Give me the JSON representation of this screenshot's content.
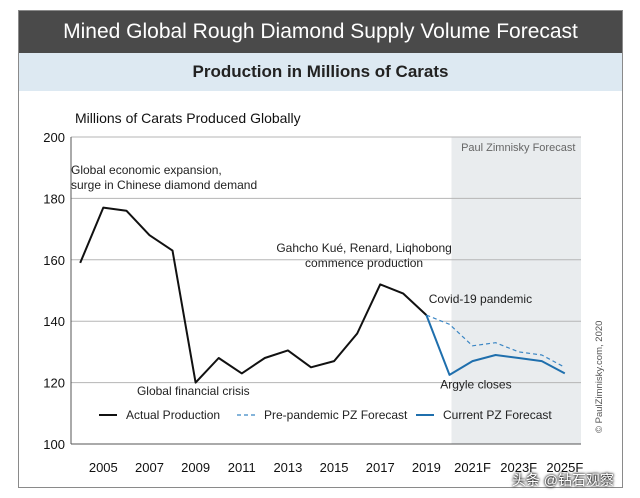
{
  "header": {
    "title": "Mined Global Rough Diamond Supply Volume Forecast",
    "subtitle": "Production in Millions of Carats"
  },
  "copyright": "© PaulZimnisky.com, 2020",
  "watermark": "头条 @钻石观察",
  "colors": {
    "actual": "#111111",
    "pre_pandemic": "#3b86c4",
    "current": "#1f6fad",
    "forecast_shade": "#e9ecee",
    "title_bg": "#4a4a4a",
    "subtitle_bg": "#dde9f2"
  },
  "chart_data": {
    "type": "line",
    "title": "Millions of Carats Produced Globally",
    "xlabel": "",
    "ylabel": "",
    "ylim": [
      100,
      200
    ],
    "yticks": [
      100,
      120,
      140,
      160,
      180,
      200
    ],
    "x": [
      2004,
      2005,
      2006,
      2007,
      2008,
      2009,
      2010,
      2011,
      2012,
      2013,
      2014,
      2015,
      2016,
      2017,
      2018,
      2019,
      2020,
      2021,
      2022,
      2023,
      2024,
      2025
    ],
    "xticks": [
      {
        "x": 2005,
        "label": "2005"
      },
      {
        "x": 2007,
        "label": "2007"
      },
      {
        "x": 2009,
        "label": "2009"
      },
      {
        "x": 2011,
        "label": "2011"
      },
      {
        "x": 2013,
        "label": "2013"
      },
      {
        "x": 2015,
        "label": "2015"
      },
      {
        "x": 2017,
        "label": "2017"
      },
      {
        "x": 2019,
        "label": "2019"
      },
      {
        "x": 2021,
        "label": "2021F"
      },
      {
        "x": 2023,
        "label": "2023F"
      },
      {
        "x": 2025,
        "label": "2025F"
      }
    ],
    "forecast_region": {
      "start": 2020,
      "label": "Paul Zimnisky Forecast"
    },
    "grid": true,
    "legend_position": "bottom",
    "series": [
      {
        "name": "Actual Production",
        "style": "solid",
        "color": "#111111",
        "x": [
          2004,
          2005,
          2006,
          2007,
          2008,
          2009,
          2010,
          2011,
          2012,
          2013,
          2014,
          2015,
          2016,
          2017,
          2018,
          2019
        ],
        "values": [
          159,
          177,
          176,
          168,
          163,
          120,
          128,
          123,
          128,
          130.5,
          125,
          127,
          136,
          152,
          149,
          142
        ]
      },
      {
        "name": "Pre-pandemic PZ Forecast",
        "style": "dashed",
        "color": "#3b86c4",
        "x": [
          2019,
          2020,
          2021,
          2022,
          2023,
          2024,
          2025
        ],
        "values": [
          142,
          139,
          132,
          133,
          130,
          129,
          125
        ]
      },
      {
        "name": "Current PZ Forecast",
        "style": "solid",
        "color": "#1f6fad",
        "x": [
          2019,
          2020,
          2021,
          2022,
          2023,
          2024,
          2025
        ],
        "values": [
          142,
          122.5,
          127,
          129,
          128,
          127,
          123
        ]
      }
    ],
    "annotations": [
      {
        "lines": [
          "Global economic expansion,",
          "surge in Chinese diamond demand"
        ],
        "x": 2003.6,
        "y": 188,
        "anchor": "start"
      },
      {
        "lines": [
          "Global financial crisis"
        ],
        "x": 2008.9,
        "y": 116,
        "anchor": "middle"
      },
      {
        "lines": [
          "Gahcho Kué, Renard, Liqhobong",
          "commence production"
        ],
        "x": 2016.3,
        "y": 162.5,
        "anchor": "middle"
      },
      {
        "lines": [
          "Covid-19 pandemic"
        ],
        "x": 2019.1,
        "y": 146,
        "anchor": "start"
      },
      {
        "lines": [
          "Argyle closes"
        ],
        "x": 2019.6,
        "y": 118,
        "anchor": "start"
      }
    ]
  }
}
